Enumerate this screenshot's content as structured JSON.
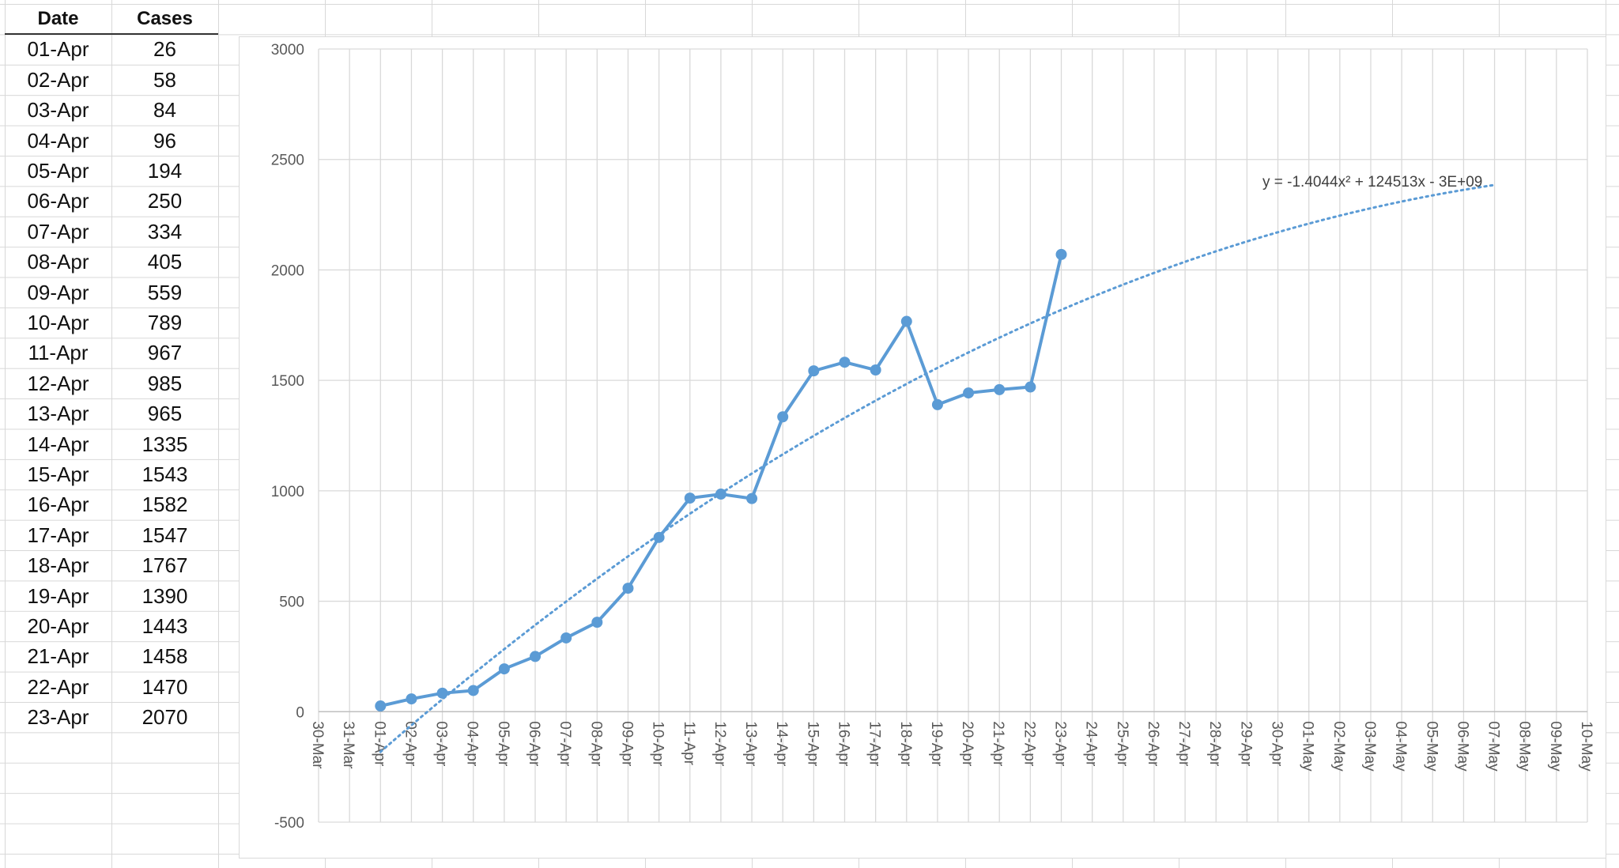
{
  "table": {
    "headers": [
      "Date",
      "Cases"
    ],
    "rows": [
      [
        "01-Apr",
        "26"
      ],
      [
        "02-Apr",
        "58"
      ],
      [
        "03-Apr",
        "84"
      ],
      [
        "04-Apr",
        "96"
      ],
      [
        "05-Apr",
        "194"
      ],
      [
        "06-Apr",
        "250"
      ],
      [
        "07-Apr",
        "334"
      ],
      [
        "08-Apr",
        "405"
      ],
      [
        "09-Apr",
        "559"
      ],
      [
        "10-Apr",
        "789"
      ],
      [
        "11-Apr",
        "967"
      ],
      [
        "12-Apr",
        "985"
      ],
      [
        "13-Apr",
        "965"
      ],
      [
        "14-Apr",
        "1335"
      ],
      [
        "15-Apr",
        "1543"
      ],
      [
        "16-Apr",
        "1582"
      ],
      [
        "17-Apr",
        "1547"
      ],
      [
        "18-Apr",
        "1767"
      ],
      [
        "19-Apr",
        "1390"
      ],
      [
        "20-Apr",
        "1443"
      ],
      [
        "21-Apr",
        "1458"
      ],
      [
        "22-Apr",
        "1470"
      ],
      [
        "23-Apr",
        "2070"
      ]
    ]
  },
  "chart_data": {
    "type": "line",
    "title": "",
    "xlabel": "",
    "ylabel": "",
    "ylim": [
      -500,
      3000
    ],
    "yticks": [
      -500,
      0,
      500,
      1000,
      1500,
      2000,
      2500,
      3000
    ],
    "x_tick_labels": [
      "30-Mar",
      "31-Mar",
      "01-Apr",
      "02-Apr",
      "03-Apr",
      "04-Apr",
      "05-Apr",
      "06-Apr",
      "07-Apr",
      "08-Apr",
      "09-Apr",
      "10-Apr",
      "11-Apr",
      "12-Apr",
      "13-Apr",
      "14-Apr",
      "15-Apr",
      "16-Apr",
      "17-Apr",
      "18-Apr",
      "19-Apr",
      "20-Apr",
      "21-Apr",
      "22-Apr",
      "23-Apr",
      "24-Apr",
      "25-Apr",
      "26-Apr",
      "27-Apr",
      "28-Apr",
      "29-Apr",
      "30-Apr",
      "01-May",
      "02-May",
      "03-May",
      "04-May",
      "05-May",
      "06-May",
      "07-May",
      "08-May",
      "09-May",
      "10-May"
    ],
    "grid": true,
    "legend": "none",
    "series": [
      {
        "x": [
          "01-Apr",
          "02-Apr",
          "03-Apr",
          "04-Apr",
          "05-Apr",
          "06-Apr",
          "07-Apr",
          "08-Apr",
          "09-Apr",
          "10-Apr",
          "11-Apr",
          "12-Apr",
          "13-Apr",
          "14-Apr",
          "15-Apr",
          "16-Apr",
          "17-Apr",
          "18-Apr",
          "19-Apr",
          "20-Apr",
          "21-Apr",
          "22-Apr",
          "23-Apr"
        ],
        "values": [
          26,
          58,
          84,
          96,
          194,
          250,
          334,
          405,
          559,
          789,
          967,
          985,
          965,
          1335,
          1543,
          1582,
          1547,
          1767,
          1390,
          1443,
          1458,
          1470,
          2070
        ],
        "color": "#5b9bd5",
        "marker": "circle"
      }
    ],
    "trendline": {
      "type": "polynomial-2",
      "style": "dotted",
      "color": "#5b9bd5",
      "x_range": [
        "01-Apr",
        "07-May"
      ],
      "equation": "y = -1.4044x² + 124513x - 3E+09"
    }
  }
}
